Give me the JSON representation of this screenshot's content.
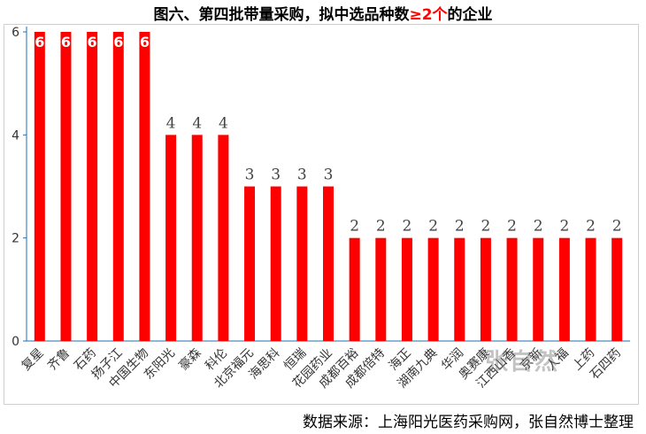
{
  "title": {
    "prefix": "图六、第四批带量采购，拟中选品种数",
    "highlight": "≥2个",
    "suffix": "的企业"
  },
  "source": "数据来源：上海阳光医药采购网，张自然博士整理",
  "watermark": "张自然",
  "colors": {
    "bar": "#ff0000",
    "axis": "#1f6fb2",
    "highlight": "#ff0000"
  },
  "chart_data": {
    "type": "bar",
    "categories": [
      "复星",
      "齐鲁",
      "石药",
      "扬子江",
      "中国生物",
      "东阳光",
      "豪森",
      "科伦",
      "北京福元",
      "海思科",
      "恒瑞",
      "花园药业",
      "成都百裕",
      "成都倍特",
      "海正",
      "湖南九典",
      "华润",
      "奥赛康",
      "江西山香",
      "京新",
      "人福",
      "上药",
      "石四药"
    ],
    "values": [
      6,
      6,
      6,
      6,
      6,
      4,
      4,
      4,
      3,
      3,
      3,
      3,
      2,
      2,
      2,
      2,
      2,
      2,
      2,
      2,
      2,
      2,
      2
    ],
    "ylim": [
      0,
      6
    ],
    "yticks": [
      0,
      2,
      4,
      6
    ],
    "grid": false,
    "data_labels": true
  }
}
